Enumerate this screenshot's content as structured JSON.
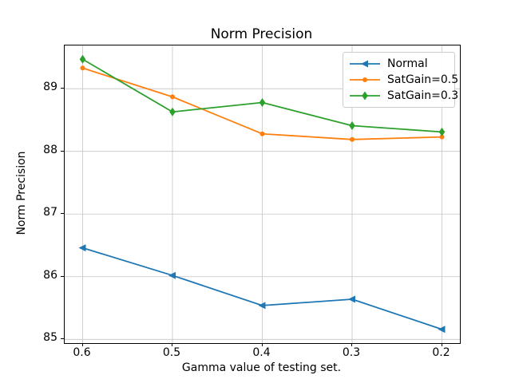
{
  "figure": {
    "background": "#ffffff",
    "text_color": "#000000",
    "grid_color": "#c4c4c4",
    "axis_color": "#000000",
    "legend_border_color": "#cccccc"
  },
  "chart_data": {
    "type": "line",
    "title": "Norm Precision",
    "xlabel": "Gamma value of testing set.",
    "ylabel": "Norm Precision",
    "x": [
      0.6,
      0.5,
      0.4,
      0.3,
      0.2
    ],
    "x_tick_labels": [
      "0.6",
      "0.5",
      "0.4",
      "0.3",
      "0.2"
    ],
    "yticks": [
      85,
      86,
      87,
      88,
      89
    ],
    "y_tick_labels": [
      "85",
      "86",
      "87",
      "88",
      "89"
    ],
    "xlim": [
      0.62,
      0.18
    ],
    "ylim": [
      84.94,
      89.69
    ],
    "grid": true,
    "legend_position": "upper right",
    "series": [
      {
        "name": "Normal",
        "color": "#1f77b4",
        "marker": "triangle-left",
        "values": [
          86.46,
          86.02,
          85.54,
          85.64,
          85.16
        ]
      },
      {
        "name": "SatGain=0.5",
        "color": "#ff7f0e",
        "marker": "dot",
        "values": [
          89.33,
          88.87,
          88.28,
          88.19,
          88.23
        ]
      },
      {
        "name": "SatGain=0.3",
        "color": "#2ca02c",
        "marker": "diamond",
        "values": [
          89.47,
          88.63,
          88.78,
          88.41,
          88.31
        ]
      }
    ]
  }
}
